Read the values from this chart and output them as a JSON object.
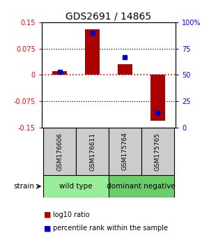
{
  "title": "GDS2691 / 14865",
  "samples": [
    "GSM176606",
    "GSM176611",
    "GSM175764",
    "GSM175765"
  ],
  "log10_ratio": [
    0.01,
    0.13,
    0.03,
    -0.13
  ],
  "percentile_rank": [
    53,
    90,
    67,
    14
  ],
  "ylim_left": [
    -0.15,
    0.15
  ],
  "ylim_right": [
    0,
    100
  ],
  "yticks_left": [
    -0.15,
    -0.075,
    0,
    0.075,
    0.15
  ],
  "ytick_labels_left": [
    "-0.15",
    "-0.075",
    "0",
    "0.075",
    "0.15"
  ],
  "yticks_right": [
    0,
    25,
    50,
    75,
    100
  ],
  "ytick_labels_right": [
    "0",
    "25",
    "50",
    "75",
    "100%"
  ],
  "groups": [
    {
      "label": "wild type",
      "samples": [
        0,
        1
      ],
      "color": "#98EE98"
    },
    {
      "label": "dominant negative",
      "samples": [
        2,
        3
      ],
      "color": "#6ACD6A"
    }
  ],
  "bar_color": "#AA0000",
  "marker_color": "#0000CC",
  "bar_width": 0.45,
  "marker_size": 5,
  "hline_color": "#DD0000",
  "dotted_lines": [
    -0.075,
    0.075
  ],
  "dotted_color": "black",
  "sample_box_color": "#CCCCCC",
  "strain_label": "strain",
  "legend_red_label": "log10 ratio",
  "legend_blue_label": "percentile rank within the sample",
  "title_fontsize": 10,
  "tick_fontsize": 7,
  "group_fontsize": 7.5,
  "sample_fontsize": 6.5
}
